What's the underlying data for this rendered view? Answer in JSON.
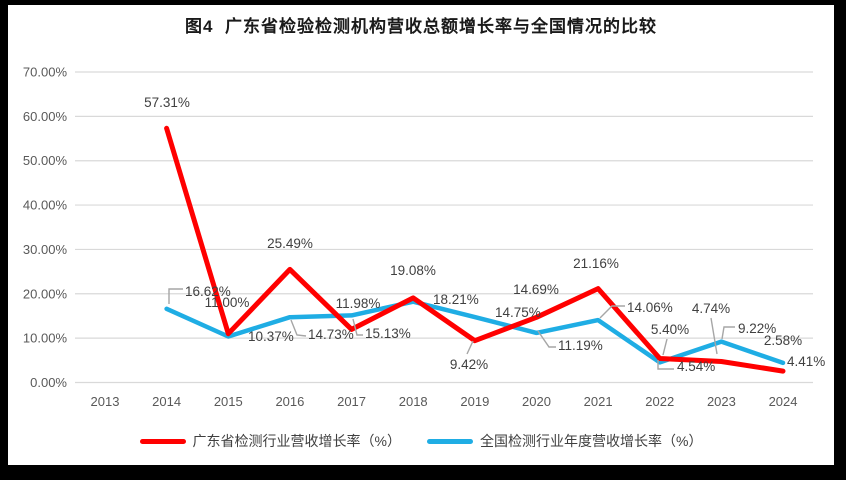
{
  "chart_data": {
    "type": "line",
    "title": "图4  广东省检验检测机构营收总额增长率与全国情况的比较",
    "categories": [
      "2013",
      "2014",
      "2015",
      "2016",
      "2017",
      "2018",
      "2019",
      "2020",
      "2021",
      "2022",
      "2023",
      "2024"
    ],
    "series": [
      {
        "name": "广东省检测行业营收增长率（%）",
        "color": "#FF0000",
        "values": [
          null,
          57.31,
          11.0,
          25.49,
          11.98,
          19.08,
          9.42,
          14.69,
          21.16,
          5.4,
          4.74,
          2.58
        ],
        "labels": [
          null,
          "57.31%",
          "11.00%",
          "25.49%",
          "11.98%",
          "19.08%",
          "9.42%",
          "14.69%",
          "21.16%",
          "5.40%",
          "4.74%",
          "2.58%"
        ]
      },
      {
        "name": "全国检测行业年度营收增长率（%）",
        "color": "#1FADE4",
        "values": [
          null,
          16.62,
          10.37,
          14.73,
          15.13,
          18.21,
          14.75,
          11.19,
          14.06,
          4.54,
          9.22,
          4.41
        ],
        "labels": [
          null,
          "16.62%",
          "10.37%",
          "14.73%",
          "15.13%",
          "18.21%",
          "14.75%",
          "11.19%",
          "14.06%",
          "4.54%",
          "9.22%",
          "4.41%"
        ]
      }
    ],
    "y_axis": {
      "min": 0,
      "max": 70,
      "step": 10,
      "tick_labels": [
        "0.00%",
        "10.00%",
        "20.00%",
        "30.00%",
        "40.00%",
        "50.00%",
        "60.00%",
        "70.00%"
      ]
    },
    "legend_position": "bottom",
    "grid": true,
    "colors": {
      "gridline": "#D9D9D9",
      "axis_text": "#595959",
      "data_label_text": "#404040",
      "leader_line": "#A6A6A6",
      "frame": "#000000"
    }
  }
}
